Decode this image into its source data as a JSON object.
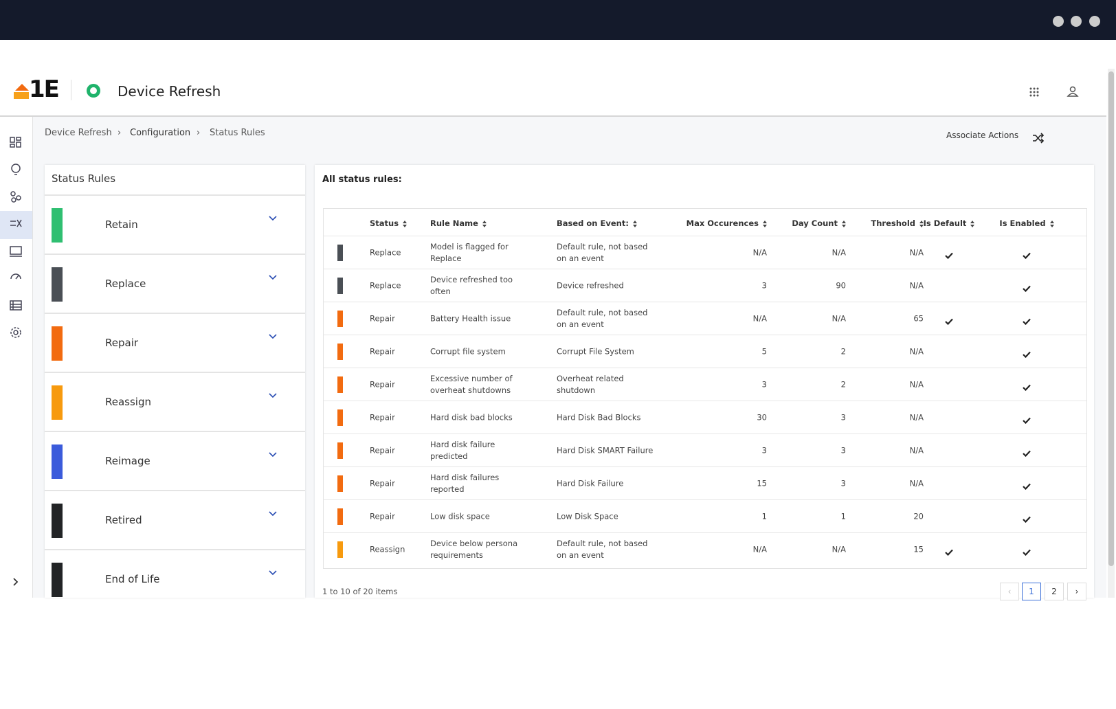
{
  "app": {
    "logo": "1E",
    "title": "Device Refresh"
  },
  "breadcrumb": [
    "Device Refresh",
    "Configuration",
    "Status Rules"
  ],
  "associate_actions": "Associate Actions",
  "left_panel": {
    "title": "Status Rules",
    "items": [
      {
        "label": "Retain",
        "color": "#2fbf71"
      },
      {
        "label": "Replace",
        "color": "#4a4f55"
      },
      {
        "label": "Repair",
        "color": "#f26b10"
      },
      {
        "label": "Reassign",
        "color": "#f79a0e"
      },
      {
        "label": "Reimage",
        "color": "#3b5bdb"
      },
      {
        "label": "Retired",
        "color": "#222426"
      },
      {
        "label": "End of Life",
        "color": "#222426"
      }
    ]
  },
  "table": {
    "title": "All status rules:",
    "columns": [
      "Status",
      "Rule Name",
      "Based on Event:",
      "Max Occurences",
      "Day Count",
      "Threshold",
      "Is Default",
      "Is Enabled"
    ],
    "rows": [
      [
        "Replace",
        "Model is flagged for Replace",
        "Default rule, not based on an event",
        "N/A",
        "N/A",
        "N/A",
        true,
        true
      ],
      [
        "Replace",
        "Device refreshed too often",
        "Device refreshed",
        3,
        90,
        "N/A",
        false,
        true
      ],
      [
        "Repair",
        "Battery Health issue",
        "Default rule, not based on an event",
        "N/A",
        "N/A",
        65,
        true,
        true
      ],
      [
        "Repair",
        "Corrupt file system",
        "Corrupt File System",
        5,
        2,
        "N/A",
        false,
        true
      ],
      [
        "Repair",
        "Excessive number of overheat shutdowns",
        "Overheat related shutdown",
        3,
        2,
        "N/A",
        false,
        true
      ],
      [
        "Repair",
        "Hard disk bad blocks",
        "Hard Disk Bad Blocks",
        30,
        3,
        "N/A",
        false,
        true
      ],
      [
        "Repair",
        "Hard disk failure predicted",
        "Hard Disk SMART Failure",
        3,
        3,
        "N/A",
        false,
        true
      ],
      [
        "Repair",
        "Hard disk failures reported",
        "Hard Disk Failure",
        15,
        3,
        "N/A",
        false,
        true
      ],
      [
        "Repair",
        "Low disk space",
        "Low Disk Space",
        1,
        1,
        20,
        false,
        true
      ],
      [
        "Reassign",
        "Device below persona requirements",
        "Default rule, not based on an event",
        "N/A",
        "N/A",
        15,
        true,
        true
      ]
    ]
  },
  "pagination": {
    "summary": "1 to 10 of 20 items",
    "pages": [
      "1",
      "2"
    ]
  }
}
